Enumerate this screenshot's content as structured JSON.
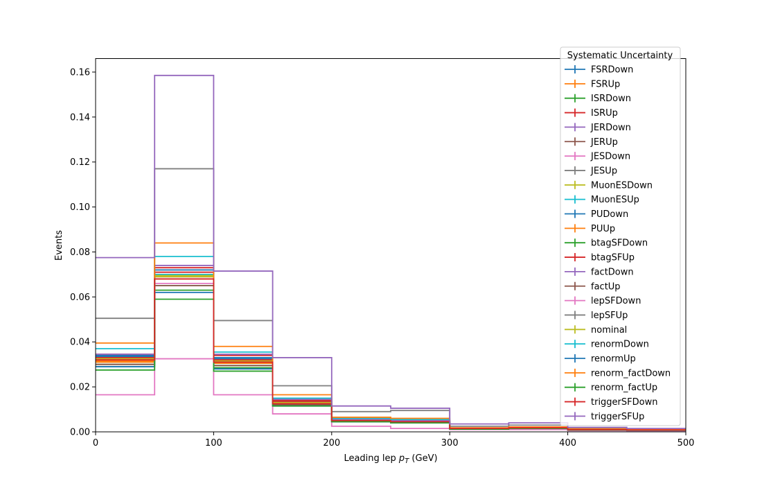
{
  "chart_data": {
    "type": "line",
    "drawstyle": "step",
    "xlabel": "Leading lep p_T (GeV)",
    "xlabel_main": "Leading lep ",
    "xlabel_sym": "p",
    "xlabel_sub": "T",
    "xlabel_unit": " (GeV)",
    "ylabel": "Events",
    "xlim": [
      0,
      500
    ],
    "ylim": [
      0,
      0.166
    ],
    "xticks": [
      "0",
      "100",
      "200",
      "300",
      "400",
      "500"
    ],
    "yticks": [
      "0.00",
      "0.02",
      "0.04",
      "0.06",
      "0.08",
      "0.10",
      "0.12",
      "0.14",
      "0.16"
    ],
    "grid": false,
    "legend_title": "Systematic Uncertainty",
    "legend_position": "top-right",
    "bin_edges": [
      0,
      50,
      100,
      150,
      200,
      250,
      300,
      350,
      400,
      450,
      500
    ],
    "series": [
      {
        "name": "FSRDown",
        "color": "#1f77b4",
        "values": [
          0.0335,
          0.07,
          0.0325,
          0.013,
          0.005,
          0.0045,
          0.0015,
          0.0018,
          0.001,
          0.0008
        ]
      },
      {
        "name": "FSRUp",
        "color": "#ff7f0e",
        "values": [
          0.031,
          0.069,
          0.0305,
          0.012,
          0.005,
          0.0045,
          0.0015,
          0.0018,
          0.001,
          0.0008
        ]
      },
      {
        "name": "ISRDown",
        "color": "#2ca02c",
        "values": [
          0.029,
          0.063,
          0.0285,
          0.0125,
          0.0045,
          0.004,
          0.0012,
          0.0016,
          0.0008,
          0.0007
        ]
      },
      {
        "name": "ISRUp",
        "color": "#d62728",
        "values": [
          0.0345,
          0.073,
          0.034,
          0.014,
          0.0055,
          0.005,
          0.0016,
          0.002,
          0.0011,
          0.0009
        ]
      },
      {
        "name": "JERDown",
        "color": "#9467bd",
        "values": [
          0.0325,
          0.069,
          0.0315,
          0.013,
          0.005,
          0.0045,
          0.0015,
          0.0018,
          0.001,
          0.0008
        ]
      },
      {
        "name": "JERUp",
        "color": "#8c564b",
        "values": [
          0.0325,
          0.068,
          0.031,
          0.013,
          0.005,
          0.0045,
          0.0015,
          0.0018,
          0.001,
          0.0008
        ]
      },
      {
        "name": "JESDown",
        "color": "#e377c2",
        "values": [
          0.032,
          0.066,
          0.031,
          0.0125,
          0.005,
          0.0045,
          0.0015,
          0.0018,
          0.001,
          0.0008
        ]
      },
      {
        "name": "JESUp",
        "color": "#7f7f7f",
        "values": [
          0.033,
          0.07,
          0.032,
          0.0135,
          0.005,
          0.0045,
          0.0015,
          0.0018,
          0.001,
          0.0008
        ]
      },
      {
        "name": "MuonESDown",
        "color": "#bcbd22",
        "values": [
          0.032,
          0.069,
          0.031,
          0.013,
          0.005,
          0.0045,
          0.0015,
          0.0018,
          0.001,
          0.0008
        ]
      },
      {
        "name": "MuonESUp",
        "color": "#17becf",
        "values": [
          0.033,
          0.07,
          0.032,
          0.013,
          0.005,
          0.0045,
          0.0015,
          0.0018,
          0.001,
          0.0008
        ]
      },
      {
        "name": "PUDown",
        "color": "#1f77b4",
        "values": [
          0.034,
          0.072,
          0.033,
          0.0135,
          0.005,
          0.0045,
          0.0015,
          0.0018,
          0.001,
          0.0008
        ]
      },
      {
        "name": "PUUp",
        "color": "#ff7f0e",
        "values": [
          0.0315,
          0.068,
          0.0305,
          0.0125,
          0.005,
          0.0045,
          0.0015,
          0.0018,
          0.001,
          0.0008
        ]
      },
      {
        "name": "btagSFDown",
        "color": "#2ca02c",
        "values": [
          0.03,
          0.065,
          0.0295,
          0.012,
          0.0045,
          0.004,
          0.0013,
          0.0016,
          0.0009,
          0.0007
        ]
      },
      {
        "name": "btagSFUp",
        "color": "#d62728",
        "values": [
          0.033,
          0.071,
          0.032,
          0.0135,
          0.005,
          0.0045,
          0.0015,
          0.0018,
          0.001,
          0.0008
        ]
      },
      {
        "name": "factDown",
        "color": "#9467bd",
        "values": [
          0.0345,
          0.074,
          0.0345,
          0.0145,
          0.0055,
          0.005,
          0.0016,
          0.002,
          0.0011,
          0.0009
        ]
      },
      {
        "name": "factUp",
        "color": "#8c564b",
        "values": [
          0.03,
          0.065,
          0.0295,
          0.012,
          0.0045,
          0.004,
          0.0013,
          0.0016,
          0.0009,
          0.0007
        ]
      },
      {
        "name": "lepSFDown",
        "color": "#e377c2",
        "values": [
          0.0165,
          0.0325,
          0.0165,
          0.008,
          0.0025,
          0.0015,
          0.001,
          0.001,
          0.0005,
          0.0004
        ]
      },
      {
        "name": "lepSFUp",
        "color": "#7f7f7f",
        "values": [
          0.0505,
          0.117,
          0.0495,
          0.0205,
          0.009,
          0.0095,
          0.0025,
          0.003,
          0.0015,
          0.0012
        ]
      },
      {
        "name": "nominal",
        "color": "#bcbd22",
        "values": [
          0.0325,
          0.0695,
          0.0315,
          0.013,
          0.005,
          0.0045,
          0.0015,
          0.0018,
          0.001,
          0.0008
        ]
      },
      {
        "name": "renormDown",
        "color": "#17becf",
        "values": [
          0.037,
          0.078,
          0.0355,
          0.015,
          0.006,
          0.0055,
          0.0017,
          0.002,
          0.0012,
          0.001
        ]
      },
      {
        "name": "renormUp",
        "color": "#1f77b4",
        "values": [
          0.029,
          0.062,
          0.028,
          0.0115,
          0.0045,
          0.004,
          0.0013,
          0.0016,
          0.0009,
          0.0007
        ]
      },
      {
        "name": "renorm_factDown",
        "color": "#ff7f0e",
        "values": [
          0.0395,
          0.084,
          0.038,
          0.0165,
          0.0065,
          0.006,
          0.0018,
          0.0022,
          0.0013,
          0.0011
        ]
      },
      {
        "name": "renorm_factUp",
        "color": "#2ca02c",
        "values": [
          0.0275,
          0.059,
          0.027,
          0.0115,
          0.0045,
          0.004,
          0.0012,
          0.0015,
          0.0008,
          0.0007
        ]
      },
      {
        "name": "triggerSFDown",
        "color": "#d62728",
        "values": [
          0.032,
          0.068,
          0.031,
          0.0125,
          0.005,
          0.0045,
          0.0015,
          0.0018,
          0.001,
          0.0008
        ]
      },
      {
        "name": "triggerSFUp",
        "color": "#9467bd",
        "values": [
          0.0775,
          0.1585,
          0.0715,
          0.033,
          0.0115,
          0.0105,
          0.0035,
          0.004,
          0.002,
          0.0015
        ]
      }
    ]
  }
}
